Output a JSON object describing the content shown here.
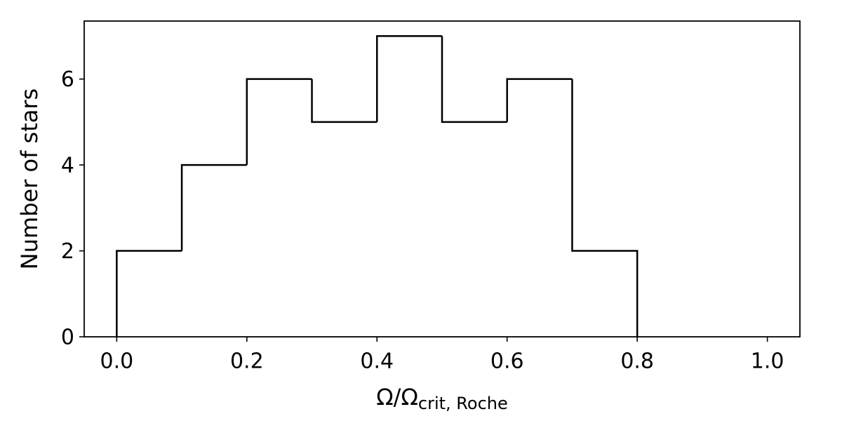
{
  "chart_data": {
    "type": "histogram",
    "xlabel": {
      "main": "Ω/Ω",
      "subscript": "crit, Roche"
    },
    "ylabel": "Number of stars",
    "bins": [
      0.0,
      0.1,
      0.2,
      0.3,
      0.4,
      0.5,
      0.6,
      0.7,
      0.8
    ],
    "values": [
      2,
      4,
      6,
      5,
      7,
      5,
      6,
      2
    ],
    "color": "#000000",
    "histtype": "step",
    "xlim": [
      -0.05,
      1.05
    ],
    "xticks": [
      {
        "value": 0,
        "label": "0.0"
      },
      0.2,
      0.4,
      0.6,
      0.8,
      {
        "value": 1,
        "label": "1.0"
      }
    ],
    "ylim": [
      0,
      7.35
    ],
    "yticks": [
      0,
      2,
      4,
      6
    ],
    "grid": false
  }
}
